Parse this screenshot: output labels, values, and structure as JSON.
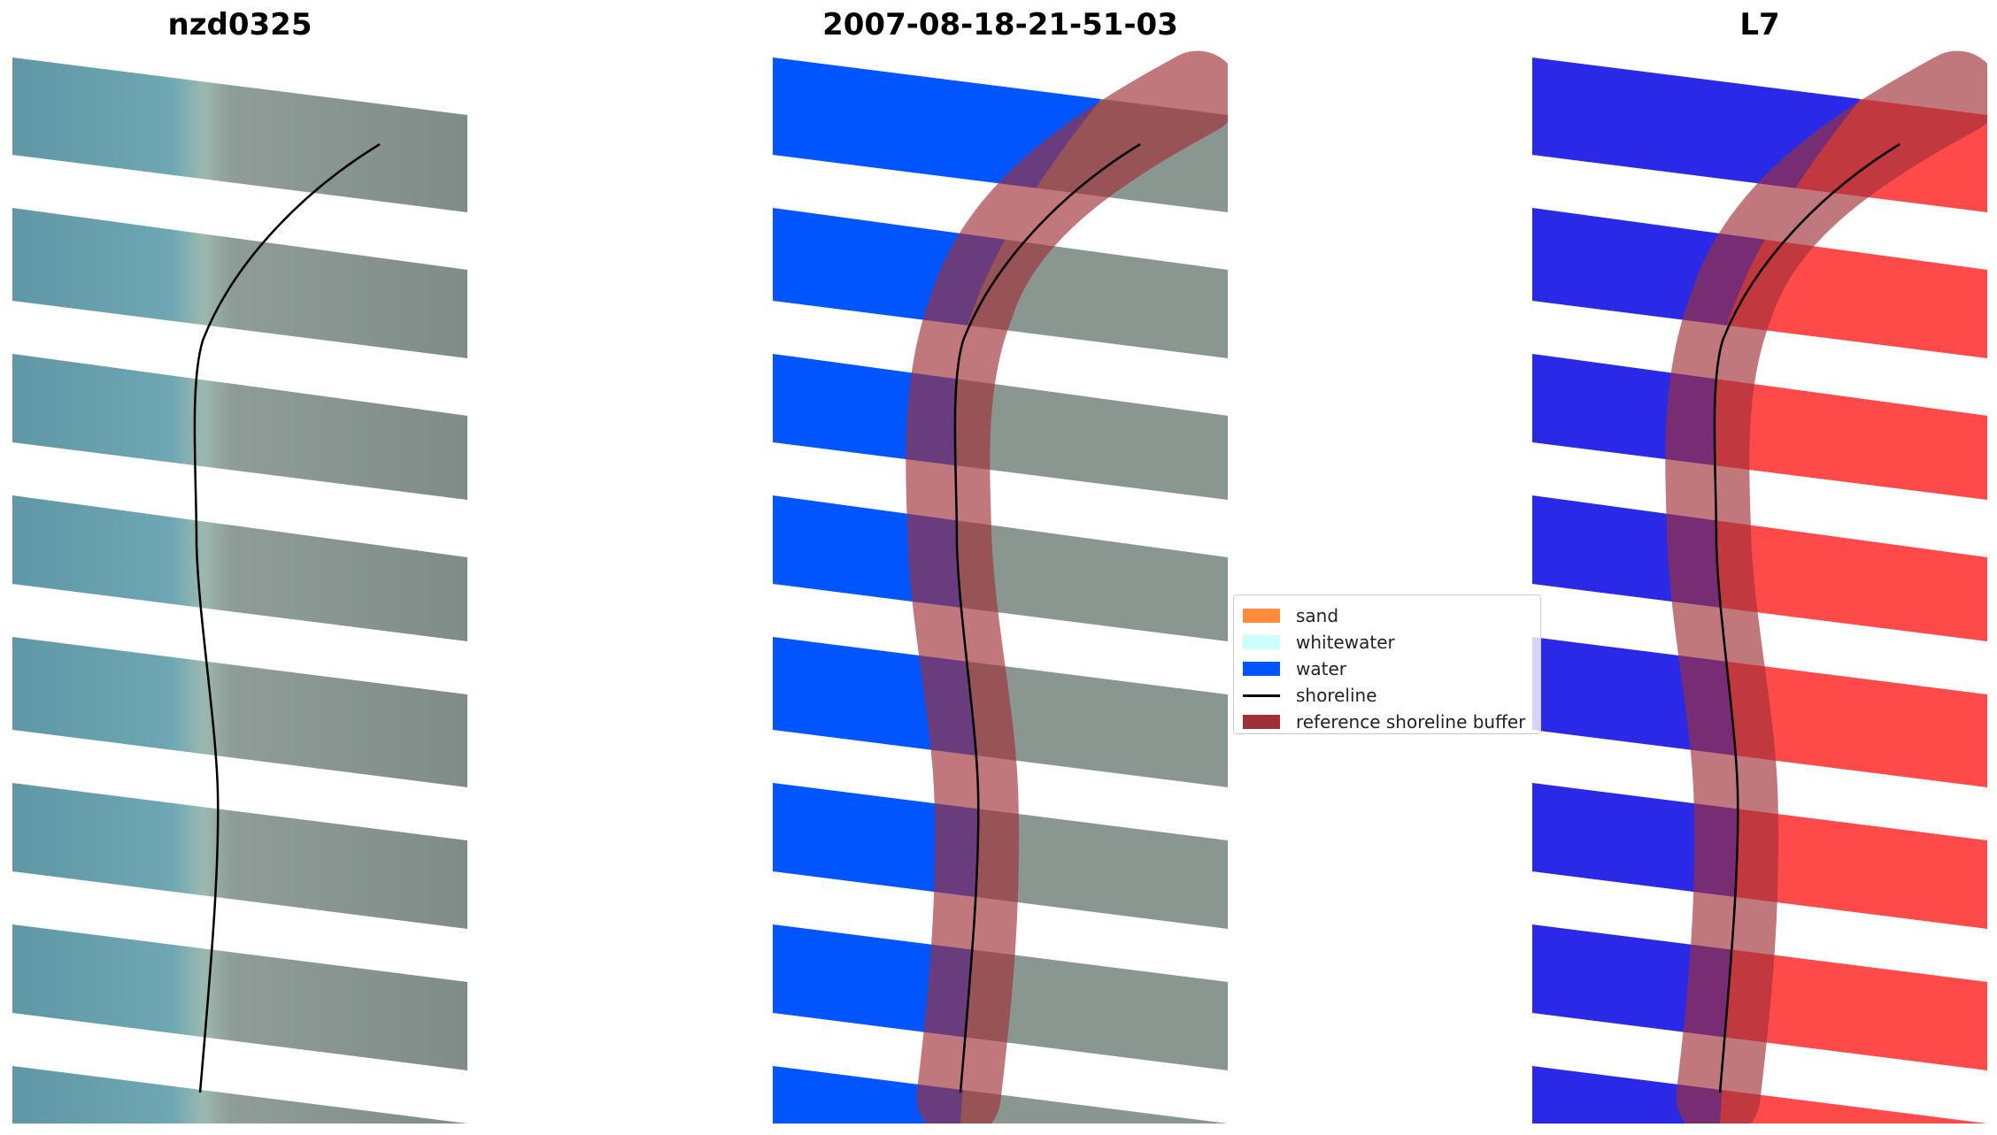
{
  "panels": [
    {
      "title": "nzd0325",
      "kind": "rgb"
    },
    {
      "title": "2007-08-18-21-51-03",
      "kind": "classified"
    },
    {
      "title": "L7",
      "kind": "index"
    }
  ],
  "legend": {
    "items": [
      {
        "label": "sand",
        "color": "#ff8c3a",
        "kind": "patch"
      },
      {
        "label": "whitewater",
        "color": "#ccffff",
        "kind": "patch"
      },
      {
        "label": "water",
        "color": "#0055ff",
        "kind": "patch"
      },
      {
        "label": "shoreline",
        "color": "#000000",
        "kind": "line"
      },
      {
        "label": "reference shoreline buffer",
        "color": "#a03038",
        "kind": "patch"
      }
    ]
  },
  "colors": {
    "sea": "#6aa3b0",
    "land": "#8a9690",
    "water_class": "#0055ff",
    "buffer": "#a03038",
    "index_water": "#2a2ae6",
    "index_land": "#ff2a2a",
    "gap": "#ffffff"
  }
}
